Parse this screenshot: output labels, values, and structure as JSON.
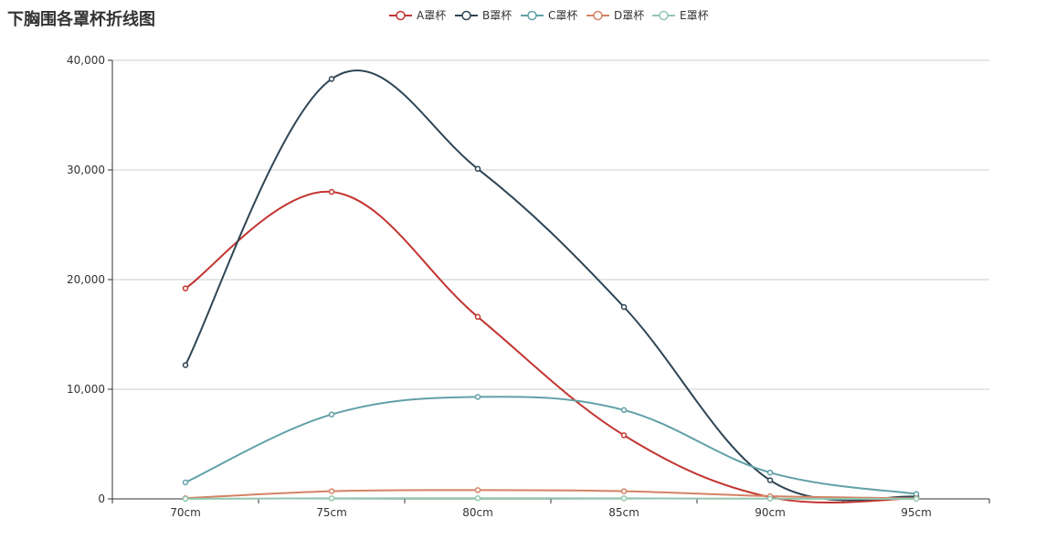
{
  "chart_data": {
    "type": "line",
    "title": "下胸围各罩杯折线图",
    "xlabel": "",
    "ylabel": "",
    "categories": [
      "70cm",
      "75cm",
      "80cm",
      "85cm",
      "90cm",
      "95cm"
    ],
    "ylim": [
      0,
      40000
    ],
    "yticks": [
      0,
      10000,
      20000,
      30000,
      40000
    ],
    "ytick_labels": [
      "0",
      "10,000",
      "20,000",
      "30,000",
      "40,000"
    ],
    "grid": true,
    "smooth": true,
    "legend_position": "top-center",
    "series": [
      {
        "name": "A罩杯",
        "color": "#c23531",
        "values": [
          19200,
          28000,
          16600,
          5800,
          150,
          50
        ]
      },
      {
        "name": "B罩杯",
        "color": "#2f4554",
        "values": [
          12200,
          38300,
          30100,
          17500,
          1700,
          200
        ]
      },
      {
        "name": "C罩杯",
        "color": "#61a0a8",
        "values": [
          1500,
          7700,
          9300,
          8100,
          2400,
          450
        ]
      },
      {
        "name": "D罩杯",
        "color": "#d48265",
        "values": [
          60,
          700,
          800,
          700,
          250,
          50
        ]
      },
      {
        "name": "E罩杯",
        "color": "#91c7ae",
        "values": [
          10,
          50,
          60,
          50,
          20,
          5
        ]
      }
    ]
  }
}
